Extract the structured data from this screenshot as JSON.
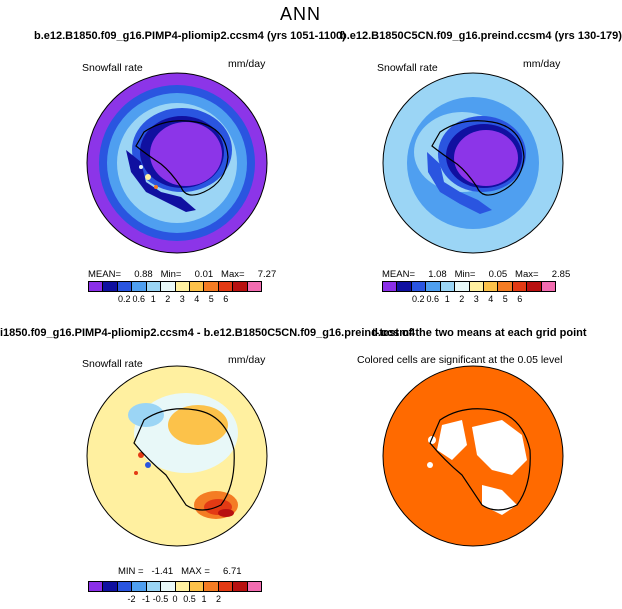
{
  "main_title": "ANN",
  "panels": [
    {
      "title": "b.e12.B1850.f09_g16.PIMP4-pliomip2.ccsm4 (yrs 1051-1100)",
      "variable": "Snowfall rate",
      "units": "mm/day",
      "stats": "MEAN=     0.88   Min=     0.01   Max=     7.27"
    },
    {
      "title": "b.e12.B1850C5CN.f09_g16.preind.ccsm4 (yrs 130-179)",
      "variable": "Snowfall rate",
      "units": "mm/day",
      "stats": "MEAN=     1.08   Min=     0.05   Max=     2.85"
    },
    {
      "title": "i1850.f09_g16.PIMP4-pliomip2.ccsm4 - b.e12.B1850C5CN.f09_g16.preind.ccsm4",
      "variable": "Snowfall rate",
      "units": "mm/day",
      "stats": "MIN =   -1.41   MAX =     6.71"
    },
    {
      "title": "t-test of the two means at each grid point",
      "subtitle": "Colored cells are significant at the 0.05 level"
    }
  ],
  "colorbar_abs": {
    "colors": [
      "#8b2fe8",
      "#1010a0",
      "#2a55e0",
      "#4f9ff0",
      "#9bd5f5",
      "#e8f8f8",
      "#fff0a0",
      "#fcc24a",
      "#f47c24",
      "#e33a14",
      "#b81010",
      "#f26cb0"
    ],
    "labels": [
      "0.2",
      "0.6",
      "1",
      "2",
      "3",
      "4",
      "5",
      "6"
    ]
  },
  "colorbar_diff": {
    "colors": [
      "#8b2fe8",
      "#1010a0",
      "#2a55e0",
      "#4f9ff0",
      "#9bd5f5",
      "#e8f8f8",
      "#fff0a0",
      "#fcc24a",
      "#f47c24",
      "#e33a14",
      "#b81010",
      "#f26cb0"
    ],
    "labels": [
      "-2",
      "-1",
      "-0.5",
      "0",
      "0.5",
      "1",
      "2"
    ]
  },
  "colors": {
    "ttest_fill": "#ff6a00",
    "ocean_outer": "#8c35e8",
    "antarctica": "#8c35e8"
  }
}
